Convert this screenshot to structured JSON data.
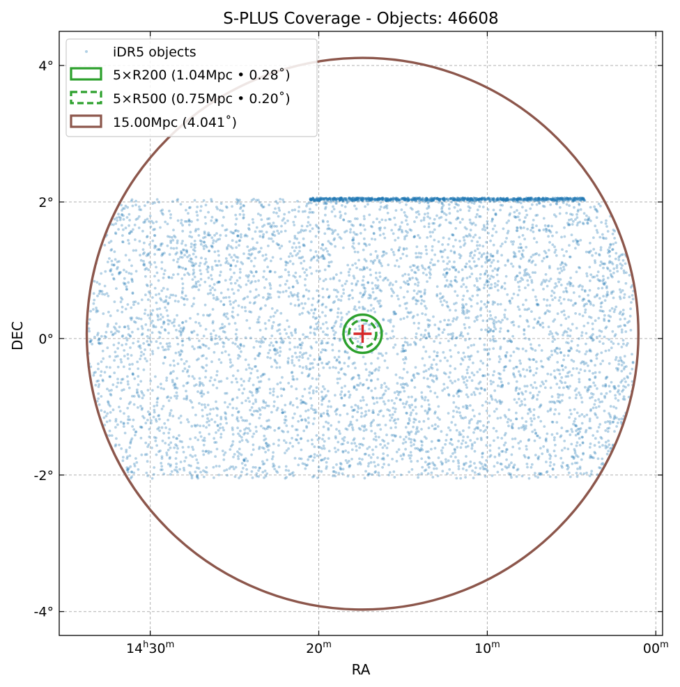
{
  "chart_data": {
    "type": "scatter",
    "title": "S-PLUS Coverage - Objects: 46608",
    "xlabel": "RA",
    "ylabel": "DEC",
    "x_unit": "minutes of RA (14h + value)",
    "xlim_minutes_of_14h": [
      35.4,
      -0.4
    ],
    "ylim_deg": [
      -4.35,
      4.5
    ],
    "x_ticks": [
      {
        "value_min": 30,
        "hour": "14",
        "hour_sup": "h",
        "minute": "30",
        "minute_sup": "m"
      },
      {
        "value_min": 20,
        "hour": "",
        "hour_sup": "",
        "minute": "20",
        "minute_sup": "m"
      },
      {
        "value_min": 10,
        "hour": "",
        "hour_sup": "",
        "minute": "10",
        "minute_sup": "m"
      },
      {
        "value_min": 0,
        "hour": "",
        "hour_sup": "",
        "minute": "00",
        "minute_sup": "m"
      }
    ],
    "y_ticks": [
      {
        "value": 4,
        "label": "4°"
      },
      {
        "value": 2,
        "label": "2°"
      },
      {
        "value": 0,
        "label": "0°"
      },
      {
        "value": -2,
        "label": "-2°"
      },
      {
        "value": -4,
        "label": "-4°"
      }
    ],
    "grid": true,
    "objects": {
      "name": "iDR5 objects",
      "color": "#1f77b4",
      "count": 46608,
      "dec_range": [
        -2.05,
        2.05
      ],
      "ra_range_minutes_of_14h": [
        34.0,
        1.3
      ],
      "clipped_by_circle": "15.00Mpc"
    },
    "center": {
      "ra_min_of_14h": 17.4,
      "dec": 0.07,
      "marker": "plus",
      "color": "#d62728"
    },
    "circles": [
      {
        "label": "5×R200 (1.04Mpc • 0.28˚)",
        "radius_deg": 0.28,
        "color": "#2ca02c",
        "style": "solid"
      },
      {
        "label": "5×R500 (0.75Mpc • 0.20˚)",
        "radius_deg": 0.2,
        "color": "#2ca02c",
        "style": "dashed"
      },
      {
        "label": "15.00Mpc (4.041˚)",
        "radius_deg": 4.041,
        "color": "#8c564b",
        "style": "solid"
      }
    ],
    "legend_position": "upper-left"
  }
}
